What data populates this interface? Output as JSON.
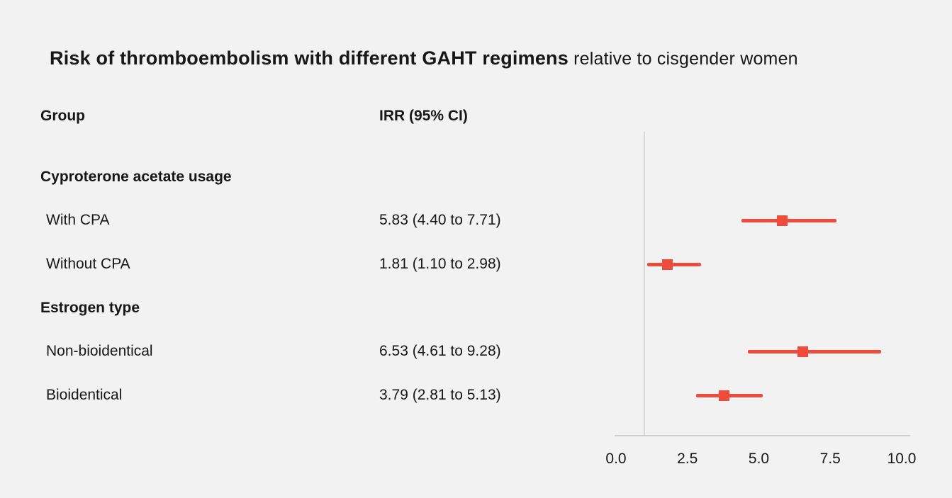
{
  "background_color": "#f2f2f2",
  "text_color": "#171717",
  "title": {
    "main": "Risk of thromboembolism with different GAHT regimens",
    "suffix": " relative to cisgender women"
  },
  "columns": {
    "group": "Group",
    "irr": "IRR (95% CI)"
  },
  "chart_data": {
    "type": "forest",
    "title": "Risk of thromboembolism with different GAHT regimens relative to cisgender women",
    "xlabel": "",
    "xlim": [
      0,
      10
    ],
    "x_ticks": [
      "0.0",
      "2.5",
      "5.0",
      "7.5",
      "10.0"
    ],
    "x_tick_values": [
      0,
      2.5,
      5,
      7.5,
      10
    ],
    "reference_line": 1.0,
    "marker_color": "#ef4b3c",
    "grid": false,
    "rows": [
      {
        "kind": "section",
        "label": "Cyproterone acetate usage",
        "value_text": ""
      },
      {
        "kind": "item",
        "label": "With CPA",
        "value_text": "5.83 (4.40 to 7.71)",
        "irr": 5.83,
        "ci_low": 4.4,
        "ci_high": 7.71
      },
      {
        "kind": "item",
        "label": "Without CPA",
        "value_text": "1.81 (1.10 to 2.98)",
        "irr": 1.81,
        "ci_low": 1.1,
        "ci_high": 2.98
      },
      {
        "kind": "section",
        "label": "Estrogen type",
        "value_text": ""
      },
      {
        "kind": "item",
        "label": "Non-bioidentical",
        "value_text": "6.53 (4.61 to 9.28)",
        "irr": 6.53,
        "ci_low": 4.61,
        "ci_high": 9.28
      },
      {
        "kind": "item",
        "label": "Bioidentical",
        "value_text": "3.79 (2.81 to 5.13)",
        "irr": 3.79,
        "ci_low": 2.81,
        "ci_high": 5.13
      }
    ]
  }
}
